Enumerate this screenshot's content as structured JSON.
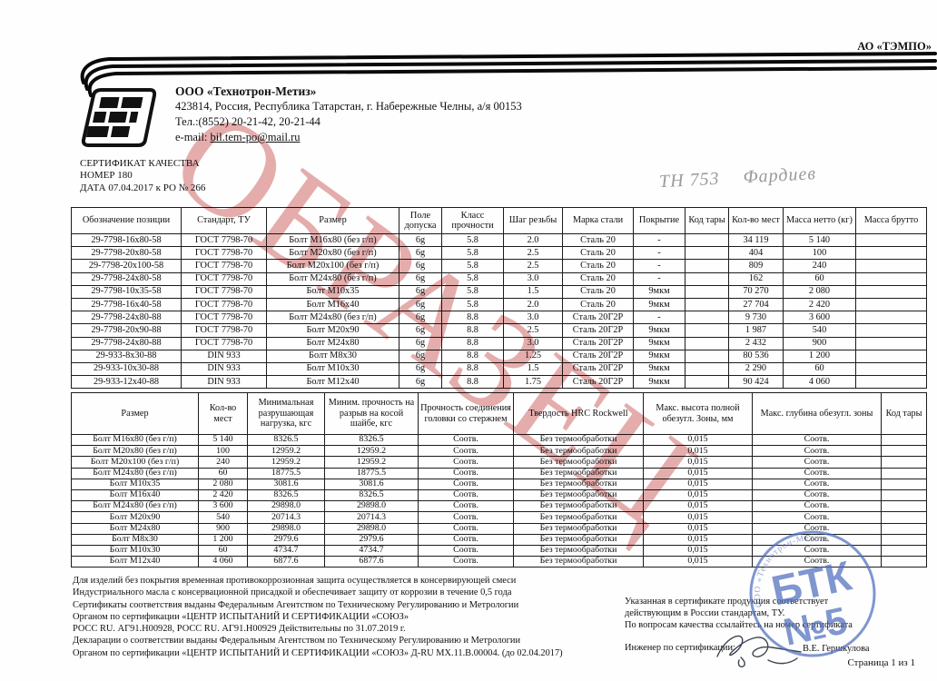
{
  "page": {
    "corner_brand": "АО «ТЭМПО»",
    "watermark": "ОБРАЗЕЦ",
    "page_number": "Страница 1 из 1"
  },
  "header": {
    "company_name": "ООО «Технотрон-Метиз»",
    "address": "423814, Россия, Республика Татарстан,  г. Набережные Челны, а/я 00153",
    "phone": "Тел.:(8552) 20-21-42, 20-21-44",
    "email_label": "e-mail:",
    "email": "bil.tem-po@mail.ru"
  },
  "certificate": {
    "title": "СЕРТИФИКАТ КАЧЕСТВА",
    "number": "НОМЕР 180",
    "date": "ДАТА 07.04.2017  к РО № 266"
  },
  "handwritten": {
    "code": "ТН 753",
    "name": "Фардиев"
  },
  "table1": {
    "headers": [
      "Обозначение позиции",
      "Стандарт, ТУ",
      "Размер",
      "Поле допуска",
      "Класс прочности",
      "Шаг резьбы",
      "Марка стали",
      "Покрытие",
      "Код тары",
      "Кол-во мест",
      "Масса нетто (кг)",
      "Масса брутто"
    ],
    "rows": [
      [
        "29-7798-16x80-58",
        "ГОСТ 7798-70",
        "Болт М16х80 (без г/п)",
        "6g",
        "5.8",
        "2.0",
        "Сталь 20",
        "-",
        "",
        "34 119",
        "5 140",
        ""
      ],
      [
        "29-7798-20x80-58",
        "ГОСТ 7798-70",
        "Болт М20х80 (без г/п)",
        "6g",
        "5.8",
        "2.5",
        "Сталь 20",
        "-",
        "",
        "404",
        "100",
        ""
      ],
      [
        "29-7798-20x100-58",
        "ГОСТ 7798-70",
        "Болт М20х100 (без г/п)",
        "6g",
        "5.8",
        "2.5",
        "Сталь 20",
        "-",
        "",
        "809",
        "240",
        ""
      ],
      [
        "29-7798-24x80-58",
        "ГОСТ 7798-70",
        "Болт М24х80 (без г/п)",
        "6g",
        "5.8",
        "3.0",
        "Сталь 20",
        "-",
        "",
        "162",
        "60",
        ""
      ],
      [
        "29-7798-10x35-58",
        "ГОСТ 7798-70",
        "Болт М10х35",
        "6g",
        "5.8",
        "1.5",
        "Сталь 20",
        "9мкм",
        "",
        "70 270",
        "2 080",
        ""
      ],
      [
        "29-7798-16x40-58",
        "ГОСТ 7798-70",
        "Болт М16х40",
        "6g",
        "5.8",
        "2.0",
        "Сталь 20",
        "9мкм",
        "",
        "27 704",
        "2 420",
        ""
      ],
      [
        "29-7798-24x80-88",
        "ГОСТ 7798-70",
        "Болт М24х80 (без г/п)",
        "6g",
        "8.8",
        "3.0",
        "Сталь 20Г2Р",
        "-",
        "",
        "9 730",
        "3 600",
        ""
      ],
      [
        "29-7798-20x90-88",
        "ГОСТ 7798-70",
        "Болт М20х90",
        "6g",
        "8.8",
        "2.5",
        "Сталь 20Г2Р",
        "9мкм",
        "",
        "1 987",
        "540",
        ""
      ],
      [
        "29-7798-24x80-88",
        "ГОСТ 7798-70",
        "Болт М24х80",
        "6g",
        "8.8",
        "3.0",
        "Сталь 20Г2Р",
        "9мкм",
        "",
        "2 432",
        "900",
        ""
      ],
      [
        "29-933-8x30-88",
        "DIN 933",
        "Болт М8х30",
        "6g",
        "8.8",
        "1.25",
        "Сталь 20Г2Р",
        "9мкм",
        "",
        "80 536",
        "1 200",
        ""
      ],
      [
        "29-933-10x30-88",
        "DIN 933",
        "Болт М10х30",
        "6g",
        "8.8",
        "1.5",
        "Сталь 20Г2Р",
        "9мкм",
        "",
        "2 290",
        "60",
        ""
      ],
      [
        "29-933-12x40-88",
        "DIN 933",
        "Болт М12х40",
        "6g",
        "8.8",
        "1.75",
        "Сталь 20Г2Р",
        "9мкм",
        "",
        "90 424",
        "4 060",
        ""
      ]
    ]
  },
  "table2": {
    "headers": [
      "Размер",
      "Кол-во мест",
      "Минимальная разрушающая нагрузка, кгс",
      "Миним. прочность на разрыв на косой шайбе, кгс",
      "Прочность соединения головки со стержнем",
      "Твердость HRC Rockwell",
      "Макс. высота полной обезугл. Зоны, мм",
      "Макс. глубина обезугл. зоны",
      "Код тары"
    ],
    "rows": [
      [
        "Болт М16х80 (без г/п)",
        "5 140",
        "8326.5",
        "8326.5",
        "Соотв.",
        "Без термообработки",
        "0,015",
        "Соотв.",
        ""
      ],
      [
        "Болт М20х80 (без г/п)",
        "100",
        "12959.2",
        "12959.2",
        "Соотв.",
        "Без термообработки",
        "0,015",
        "Соотв.",
        ""
      ],
      [
        "Болт М20х100 (без г/п)",
        "240",
        "12959.2",
        "12959.2",
        "Соотв.",
        "Без термообработки",
        "0,015",
        "Соотв.",
        ""
      ],
      [
        "Болт М24х80 (без г/п)",
        "60",
        "18775.5",
        "18775.5",
        "Соотв.",
        "Без термообработки",
        "0,015",
        "Соотв.",
        ""
      ],
      [
        "Болт М10х35",
        "2 080",
        "3081.6",
        "3081.6",
        "Соотв.",
        "Без термообработки",
        "0,015",
        "Соотв.",
        ""
      ],
      [
        "Болт М16х40",
        "2 420",
        "8326.5",
        "8326.5",
        "Соотв.",
        "Без термообработки",
        "0,015",
        "Соотв.",
        ""
      ],
      [
        "Болт М24х80 (без г/п)",
        "3 600",
        "29898.0",
        "29898.0",
        "Соотв.",
        "Без термообработки",
        "0,015",
        "Соотв.",
        ""
      ],
      [
        "Болт М20х90",
        "540",
        "20714.3",
        "20714.3",
        "Соотв.",
        "Без термообработки",
        "0,015",
        "Соотв.",
        ""
      ],
      [
        "Болт М24х80",
        "900",
        "29898.0",
        "29898.0",
        "Соотв.",
        "Без термообработки",
        "0,015",
        "Соотв.",
        ""
      ],
      [
        "Болт М8х30",
        "1 200",
        "2979.6",
        "2979.6",
        "Соотв.",
        "Без термообработки",
        "0,015",
        "Соотв.",
        ""
      ],
      [
        "Болт М10х30",
        "60",
        "4734.7",
        "4734.7",
        "Соотв.",
        "Без термообработки",
        "0,015",
        "Соотв.",
        ""
      ],
      [
        "Болт М12х40",
        "4 060",
        "6877.6",
        "6877.6",
        "Соотв.",
        "Без термообработки",
        "0,015",
        "Соотв.",
        ""
      ]
    ]
  },
  "footer_left": {
    "lines": [
      "Для изделий без покрытия временная противокоррозионная защита осуществляется в консервирующей смеси",
      "Индустриального масла с консервационной присадкой и обеспечивает защиту от коррозии в течение 0,5 года",
      "Сертификаты соответствия выданы Федеральным Агентством по Техническому Регулированию и Метрологии",
      "Органом по сертификации «ЦЕНТР ИСПЫТАНИЙ И СЕРТИФИКАЦИИ «СОЮЗ»",
      "РОСС RU. АГ91.Н00928,  РОСС RU. АГ91.Н00929 Действительны по 31.07.2019 г.",
      "Декларации о соответствии выданы Федеральным Агентством по Техническому Регулированию и Метрологии",
      "Органом по сертификации «ЦЕНТР ИСПЫТАНИЙ И СЕРТИФИКАЦИИ «СОЮЗ» Д-RU МХ.11.В.00004. (до 02.04.2017)"
    ]
  },
  "footer_right": {
    "lines": [
      "Указанная в сертификате продукция соответствует",
      "действующим в России стандартам, ТУ.",
      "По вопросам качества ссылайтесь на номер сертификата"
    ],
    "engineer_label": "Инженер по сертификации:",
    "engineer_name": "В.Е. Гершкулова"
  },
  "stamp": {
    "ring_text": "ООО «Технотрон-Метиз»",
    "line1": "БТК",
    "line2": "№5",
    "color": "#4f6fbe"
  },
  "colors": {
    "watermark_red": "#c23a3a",
    "ink_black": "#1c1c1c",
    "pencil_gray": "#9a9a9a"
  }
}
